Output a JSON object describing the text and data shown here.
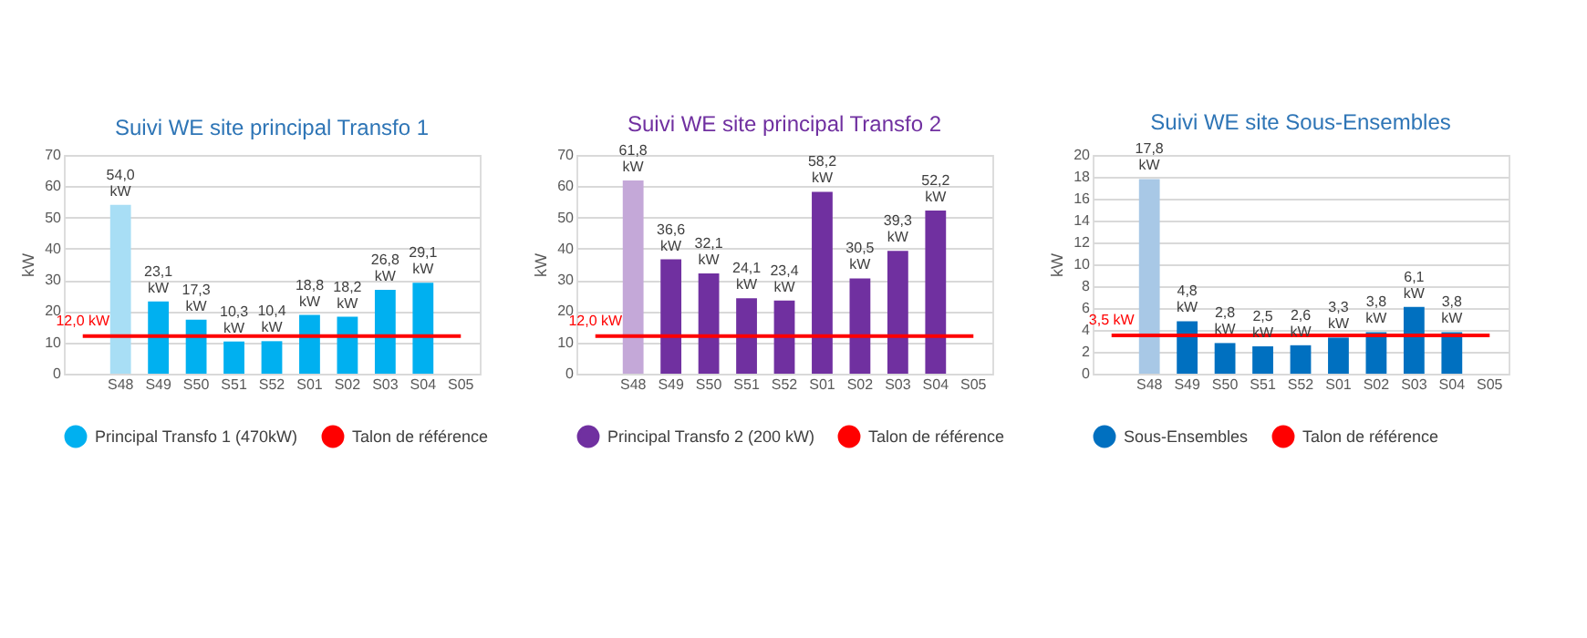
{
  "chart_data": [
    {
      "type": "bar",
      "title": "Suivi WE site principal Transfo 1",
      "ylabel": "kW",
      "categories": [
        null,
        "S48",
        "S49",
        "S50",
        "S51",
        "S52",
        "S01",
        "S02",
        "S03",
        "S04",
        "S05"
      ],
      "ylim": [
        0,
        70
      ],
      "yticks": [
        0,
        10,
        20,
        30,
        40,
        50,
        60,
        70
      ],
      "grid": "y",
      "legend": "bottom",
      "series": [
        {
          "name": "Principal Transfo 1 (470kW)",
          "color": "#00b0f0",
          "colors": [
            null,
            "#a8def5",
            "#00b0f0",
            "#00b0f0",
            "#00b0f0",
            "#00b0f0",
            "#00b0f0",
            "#00b0f0",
            "#00b0f0",
            "#00b0f0",
            null
          ],
          "values": [
            null,
            54.0,
            23.1,
            17.3,
            10.3,
            10.4,
            18.8,
            18.2,
            26.8,
            29.1,
            null
          ],
          "value_labels": [
            null,
            "54,0 kW",
            "23,1 kW",
            "17,3 kW",
            "10,3 kW",
            "10,4 kW",
            "18,8 kW",
            "18,2 kW",
            "26,8 kW",
            "29,1 kW",
            null
          ]
        },
        {
          "name": "Talon de référence",
          "type": "line",
          "color": "#ff0000",
          "values": [
            12.0,
            12.0,
            12.0,
            12.0,
            12.0,
            12.0,
            12.0,
            12.0,
            12.0,
            12.0,
            12.0
          ],
          "value_labels": [
            "12,0 kW",
            null,
            null,
            null,
            null,
            null,
            null,
            null,
            null,
            null,
            null
          ]
        }
      ]
    },
    {
      "type": "bar",
      "title": "Suivi WE site principal Transfo 2",
      "ylabel": "kW",
      "categories": [
        null,
        "S48",
        "S49",
        "S50",
        "S51",
        "S52",
        "S01",
        "S02",
        "S03",
        "S04",
        "S05"
      ],
      "ylim": [
        0,
        70
      ],
      "yticks": [
        0,
        10,
        20,
        30,
        40,
        50,
        60,
        70
      ],
      "grid": "y",
      "legend": "bottom",
      "series": [
        {
          "name": "Principal Transfo 2 (200 kW)",
          "color": "#7030a0",
          "colors": [
            null,
            "#c4a8d8",
            "#7030a0",
            "#7030a0",
            "#7030a0",
            "#7030a0",
            "#7030a0",
            "#7030a0",
            "#7030a0",
            "#7030a0",
            null
          ],
          "values": [
            null,
            61.8,
            36.6,
            32.1,
            24.1,
            23.4,
            58.2,
            30.5,
            39.3,
            52.2,
            null
          ],
          "value_labels": [
            null,
            "61,8 kW",
            "36,6 kW",
            "32,1 kW",
            "24,1 kW",
            "23,4 kW",
            "58,2 kW",
            "30,5 kW",
            "39,3 kW",
            "52,2 kW",
            null
          ]
        },
        {
          "name": "Talon de référence",
          "type": "line",
          "color": "#ff0000",
          "values": [
            12.0,
            12.0,
            12.0,
            12.0,
            12.0,
            12.0,
            12.0,
            12.0,
            12.0,
            12.0,
            12.0
          ],
          "value_labels": [
            "12,0 kW",
            null,
            null,
            null,
            null,
            null,
            null,
            null,
            null,
            null,
            null
          ]
        }
      ]
    },
    {
      "type": "bar",
      "title": "Suivi WE site Sous-Ensembles",
      "ylabel": "kW",
      "categories": [
        null,
        "S48",
        "S49",
        "S50",
        "S51",
        "S52",
        "S01",
        "S02",
        "S03",
        "S04",
        "S05"
      ],
      "ylim": [
        0,
        20
      ],
      "yticks": [
        0,
        2,
        4,
        6,
        8,
        10,
        12,
        14,
        16,
        18,
        20
      ],
      "grid": "y",
      "legend": "bottom",
      "series": [
        {
          "name": "Sous-Ensembles",
          "color": "#0070c0",
          "colors": [
            null,
            "#a8c8e6",
            "#0070c0",
            "#0070c0",
            "#0070c0",
            "#0070c0",
            "#0070c0",
            "#0070c0",
            "#0070c0",
            "#0070c0",
            null
          ],
          "values": [
            null,
            17.8,
            4.8,
            2.8,
            2.5,
            2.6,
            3.3,
            3.8,
            6.1,
            3.8,
            null
          ],
          "value_labels": [
            null,
            "17,8 kW",
            "4,8 kW",
            "2,8 kW",
            "2,5 kW",
            "2,6 kW",
            "3,3 kW",
            "3,8 kW",
            "6,1 kW",
            "3,8 kW",
            null
          ]
        },
        {
          "name": "Talon de référence",
          "type": "line",
          "color": "#ff0000",
          "values": [
            3.5,
            3.5,
            3.5,
            3.5,
            3.5,
            3.5,
            3.5,
            3.5,
            3.5,
            3.5,
            3.5
          ],
          "value_labels": [
            "3,5 kW",
            null,
            null,
            null,
            null,
            null,
            null,
            null,
            null,
            null,
            null
          ]
        }
      ]
    }
  ]
}
